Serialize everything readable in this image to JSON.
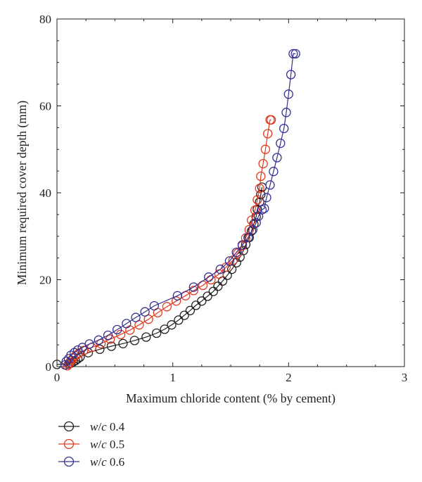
{
  "chart_data": {
    "type": "line",
    "title": "",
    "xlabel": "Maximum chloride content (% by cement)",
    "ylabel": "Minimum required cover depth (mm)",
    "xlim": [
      0,
      3
    ],
    "ylim": [
      0,
      80
    ],
    "xticks": [
      "0",
      "1",
      "2",
      "3"
    ],
    "yticks": [
      "0",
      "20",
      "40",
      "60",
      "80"
    ],
    "grid": false,
    "legend_position": "bottom-left, below plot",
    "marker": "open-circle",
    "series": [
      {
        "name_prefix": "w/c",
        "name_value": "0.4",
        "color": "#231f20",
        "x": [
          0.0,
          0.1,
          0.12,
          0.14,
          0.16,
          0.18,
          0.2,
          0.27,
          0.37,
          0.47,
          0.57,
          0.67,
          0.77,
          0.86,
          0.93,
          0.99,
          1.05,
          1.1,
          1.15,
          1.2,
          1.25,
          1.3,
          1.35,
          1.39,
          1.43,
          1.47,
          1.51,
          1.55,
          1.58,
          1.61,
          1.63,
          1.66,
          1.68,
          1.7,
          1.72,
          1.73,
          1.75,
          1.76,
          1.77
        ],
        "y": [
          0.5,
          0.6,
          0.8,
          1.1,
          1.4,
          1.8,
          2.2,
          3.2,
          4.0,
          4.7,
          5.3,
          6.0,
          6.8,
          7.7,
          8.6,
          9.6,
          10.7,
          11.8,
          12.9,
          14.1,
          15.1,
          16.2,
          17.3,
          18.5,
          19.7,
          21.0,
          22.4,
          23.9,
          25.2,
          26.7,
          28.1,
          29.7,
          31.2,
          32.8,
          34.5,
          36.2,
          37.9,
          39.6,
          41.3
        ]
      },
      {
        "name_prefix": "w/c",
        "name_value": "0.5",
        "color": "#e23a1f",
        "x": [
          0.09,
          0.1,
          0.11,
          0.12,
          0.14,
          0.16,
          0.19,
          0.23,
          0.3,
          0.38,
          0.46,
          0.55,
          0.63,
          0.71,
          0.79,
          0.87,
          0.95,
          1.03,
          1.11,
          1.18,
          1.26,
          1.33,
          1.4,
          1.46,
          1.52,
          1.56,
          1.6,
          1.63,
          1.66,
          1.68,
          1.71,
          1.73,
          1.75,
          1.76,
          1.78,
          1.8,
          1.82,
          1.84,
          1.85
        ],
        "y": [
          0.2,
          0.5,
          0.9,
          1.4,
          1.9,
          2.5,
          3.1,
          3.7,
          4.4,
          5.3,
          6.3,
          7.4,
          8.4,
          9.6,
          10.9,
          12.4,
          13.8,
          15.1,
          16.3,
          17.5,
          18.7,
          20.0,
          21.3,
          22.9,
          24.5,
          26.1,
          27.8,
          29.6,
          31.5,
          33.7,
          36.0,
          38.4,
          41.0,
          43.8,
          46.7,
          50.0,
          53.6,
          56.8,
          56.8
        ]
      },
      {
        "name_prefix": "w/c",
        "name_value": "0.6",
        "color": "#34308f",
        "x": [
          0.07,
          0.08,
          0.1,
          0.12,
          0.15,
          0.18,
          0.22,
          0.28,
          0.36,
          0.44,
          0.52,
          0.6,
          0.68,
          0.76,
          0.84,
          1.04,
          1.18,
          1.31,
          1.41,
          1.49,
          1.55,
          1.6,
          1.65,
          1.69,
          1.72,
          1.74,
          1.77,
          1.79,
          1.81,
          1.84,
          1.87,
          1.9,
          1.93,
          1.96,
          1.98,
          2.0,
          2.02,
          2.04,
          2.06
        ],
        "y": [
          0.4,
          1.2,
          1.8,
          2.6,
          3.2,
          3.8,
          4.4,
          5.2,
          6.1,
          7.2,
          8.5,
          9.9,
          11.3,
          12.6,
          14.0,
          16.3,
          18.3,
          20.6,
          22.4,
          24.3,
          26.3,
          28.0,
          29.7,
          31.5,
          33.1,
          34.6,
          36.1,
          36.4,
          38.9,
          41.8,
          44.9,
          48.1,
          51.4,
          54.8,
          58.5,
          62.7,
          67.2,
          72.0,
          72.0
        ]
      }
    ]
  }
}
